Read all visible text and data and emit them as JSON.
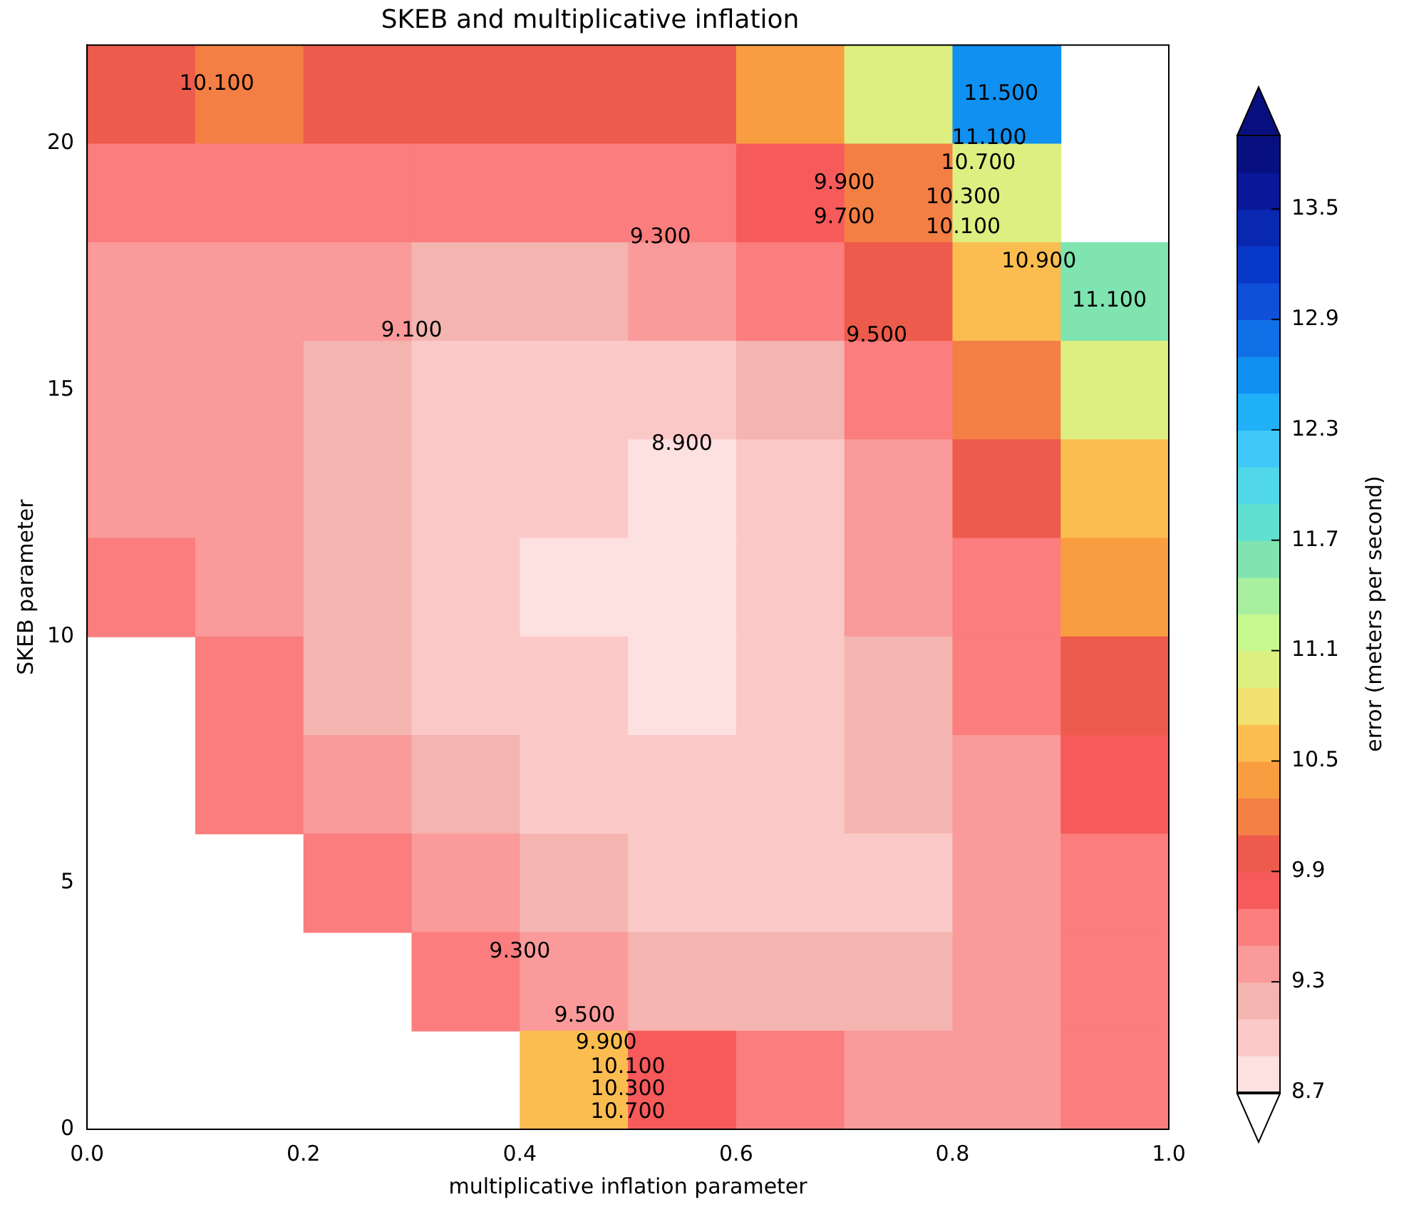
{
  "chart_data": {
    "type": "heatmap",
    "title": "SKEB and multiplicative inflation",
    "xlabel": "multiplicative inflation parameter",
    "ylabel": "SKEB parameter",
    "clabel": "error (meters per second)",
    "xlim": [
      0,
      1
    ],
    "xticks": [
      {
        "value": 0,
        "label": "0.0"
      },
      {
        "value": 0.2,
        "label": "0.2"
      },
      {
        "value": 0.4,
        "label": "0.4"
      },
      {
        "value": 0.6,
        "label": "0.6"
      },
      {
        "value": 0.8,
        "label": "0.8"
      },
      {
        "value": 1,
        "label": "1.0"
      }
    ],
    "ylim": [
      0,
      22
    ],
    "yticks": [
      0,
      5,
      10,
      15,
      20
    ],
    "clim": [
      8.7,
      13.9
    ],
    "cticks": [
      8.7,
      9.3,
      9.9,
      10.5,
      11.1,
      11.7,
      12.3,
      12.9,
      13.5
    ],
    "colors": [
      "#fde0e0",
      "#fbc8c8",
      "#f4b4b0",
      "#fa9a9a",
      "#fb7d7d",
      "#f75a5a",
      "#ec5b4c",
      "#f47f45",
      "#f99e40",
      "#fbbd50",
      "#f2e070",
      "#dcef80",
      "#c8f890",
      "#a8f0a0",
      "#80e4b0",
      "#60e0d0",
      "#50d8e8",
      "#40c8f8",
      "#20b0f8",
      "#1090f0",
      "#1070e8",
      "#1050d8",
      "#0838c8",
      "#0828b0",
      "#081898",
      "#081080"
    ],
    "cells": [
      [
        10.0,
        10.1,
        10.0,
        9.95,
        9.9,
        10.0,
        10.3,
        10.9,
        12.5,
        null
      ],
      [
        9.7,
        9.6,
        9.5,
        9.5,
        9.5,
        9.6,
        9.8,
        10.2,
        11.0,
        null
      ],
      [
        9.45,
        9.4,
        9.3,
        9.25,
        9.2,
        9.3,
        9.5,
        9.9,
        10.5,
        11.6
      ],
      [
        9.4,
        9.3,
        9.2,
        9.05,
        9.0,
        9.0,
        9.2,
        9.6,
        10.1,
        11.0
      ],
      [
        9.4,
        9.3,
        9.1,
        9.0,
        8.9,
        8.85,
        9.05,
        9.4,
        9.9,
        10.6
      ],
      [
        9.6,
        9.35,
        9.15,
        9.0,
        8.85,
        8.85,
        9.0,
        9.3,
        9.7,
        10.3
      ],
      [
        null,
        9.5,
        9.2,
        9.05,
        8.95,
        8.85,
        8.95,
        9.2,
        9.5,
        10.0
      ],
      [
        null,
        9.6,
        9.3,
        9.15,
        9.05,
        8.9,
        8.95,
        9.1,
        9.4,
        9.8
      ],
      [
        null,
        null,
        9.5,
        9.3,
        9.15,
        9.05,
        9.0,
        9.05,
        9.3,
        9.6
      ],
      [
        null,
        null,
        null,
        9.7,
        9.4,
        9.25,
        9.15,
        9.1,
        9.3,
        9.55
      ],
      [
        null,
        null,
        null,
        null,
        10.5,
        9.8,
        9.5,
        9.3,
        9.35,
        9.5
      ]
    ],
    "annotations": [
      "10.100",
      "11.500",
      "11.100",
      "10.700",
      "10.300",
      "10.100",
      "9.900",
      "9.700",
      "10.900",
      "11.100",
      "9.300",
      "9.100",
      "9.500",
      "8.900",
      "9.300",
      "9.500",
      "9.900",
      "10.100",
      "10.300",
      "10.700"
    ]
  }
}
